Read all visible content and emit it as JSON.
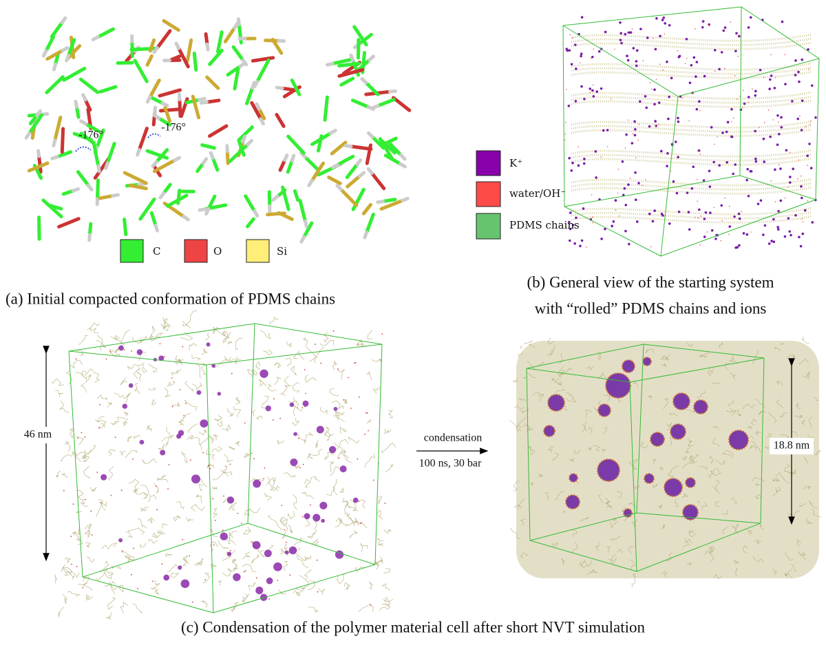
{
  "panel_a": {
    "angle_labels": [
      "-176°",
      "-176°"
    ],
    "legend": [
      "C",
      "O",
      "Si"
    ],
    "caption": "(a) Initial compacted conformation of PDMS chains"
  },
  "panel_b": {
    "legend": [
      "K⁺",
      "water/OH⁻",
      "PDMS chains"
    ],
    "caption": [
      "(b) General view of the starting system",
      "with “rolled” PDMS chains and ions"
    ]
  },
  "panel_c": {
    "initial_size": "46 nm",
    "arrow_label": "condensation",
    "arrow_sublabel": "100 ns, 30 bar",
    "final_size": "18.8 nm",
    "caption": "(c) Condensation of the polymer material cell after short NVT simulation"
  }
}
